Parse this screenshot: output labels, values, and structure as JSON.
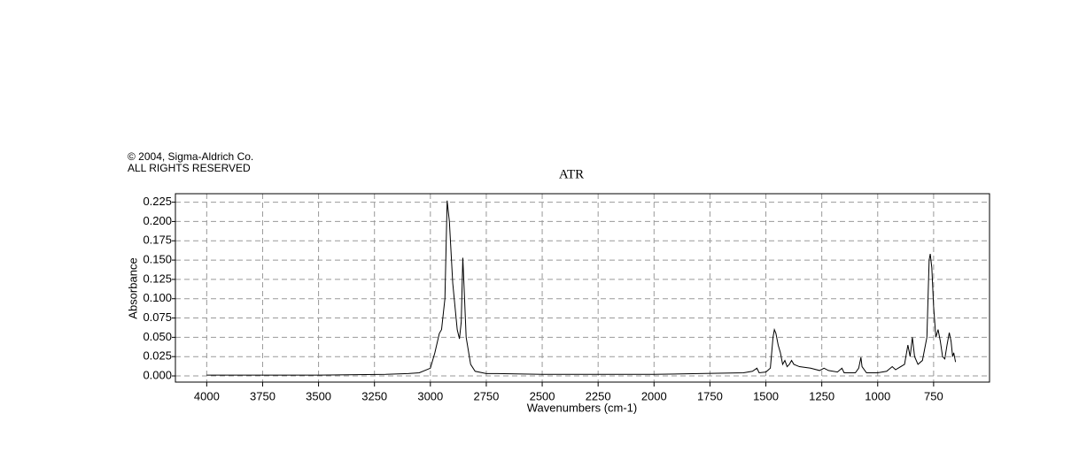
{
  "chart_data": {
    "type": "line",
    "title": "ATR",
    "annotations": [
      "© 2004, Sigma-Aldrich Co.",
      "ALL RIGHTS RESERVED"
    ],
    "x_label": "Wavenumbers (cm-1)",
    "y_label": "Absorbance",
    "x": [
      4000,
      3500,
      3200,
      3100,
      3050,
      3000,
      2980,
      2960,
      2950,
      2935,
      2925,
      2915,
      2900,
      2880,
      2870,
      2862,
      2855,
      2850,
      2840,
      2820,
      2800,
      2750,
      2700,
      2500,
      2000,
      1800,
      1600,
      1560,
      1540,
      1530,
      1500,
      1480,
      1468,
      1462,
      1455,
      1445,
      1435,
      1425,
      1415,
      1405,
      1395,
      1385,
      1375,
      1350,
      1300,
      1260,
      1240,
      1220,
      1180,
      1160,
      1150,
      1100,
      1085,
      1075,
      1070,
      1050,
      1000,
      960,
      935,
      920,
      880,
      865,
      855,
      845,
      835,
      820,
      800,
      780,
      770,
      765,
      758,
      750,
      740,
      730,
      720,
      710,
      700,
      690,
      680,
      672,
      665,
      660,
      652
    ],
    "series": [
      {
        "color": "#000000",
        "values": [
          0.001,
          0.001,
          0.002,
          0.003,
          0.004,
          0.01,
          0.03,
          0.055,
          0.06,
          0.1,
          0.227,
          0.2,
          0.12,
          0.06,
          0.048,
          0.07,
          0.153,
          0.12,
          0.05,
          0.015,
          0.006,
          0.003,
          0.003,
          0.002,
          0.002,
          0.003,
          0.004,
          0.006,
          0.01,
          0.004,
          0.005,
          0.01,
          0.05,
          0.06,
          0.055,
          0.04,
          0.03,
          0.015,
          0.02,
          0.012,
          0.015,
          0.02,
          0.015,
          0.012,
          0.01,
          0.007,
          0.01,
          0.007,
          0.005,
          0.01,
          0.004,
          0.004,
          0.01,
          0.024,
          0.012,
          0.004,
          0.004,
          0.006,
          0.012,
          0.008,
          0.015,
          0.04,
          0.025,
          0.05,
          0.025,
          0.015,
          0.02,
          0.05,
          0.15,
          0.158,
          0.14,
          0.09,
          0.05,
          0.06,
          0.045,
          0.025,
          0.022,
          0.04,
          0.056,
          0.045,
          0.025,
          0.03,
          0.018
        ]
      }
    ],
    "xlim": [
      4140,
      500
    ],
    "ylim": [
      -0.008,
      0.236
    ],
    "xticks": [
      4000,
      3750,
      3500,
      3250,
      3000,
      2750,
      2500,
      2250,
      2000,
      1750,
      1500,
      1250,
      1000,
      750
    ],
    "yticks": [
      {
        "value": 0,
        "label": "0.000"
      },
      {
        "value": 0.025,
        "label": "0.025"
      },
      {
        "value": 0.05,
        "label": "0.050"
      },
      {
        "value": 0.075,
        "label": "0.075"
      },
      {
        "value": 0.1,
        "label": "0.100"
      },
      {
        "value": 0.125,
        "label": "0.125"
      },
      {
        "value": 0.15,
        "label": "0.150"
      },
      {
        "value": 0.175,
        "label": "0.175"
      },
      {
        "value": 0.2,
        "label": "0.200"
      },
      {
        "value": 0.225,
        "label": "0.225"
      }
    ],
    "grid": true
  }
}
